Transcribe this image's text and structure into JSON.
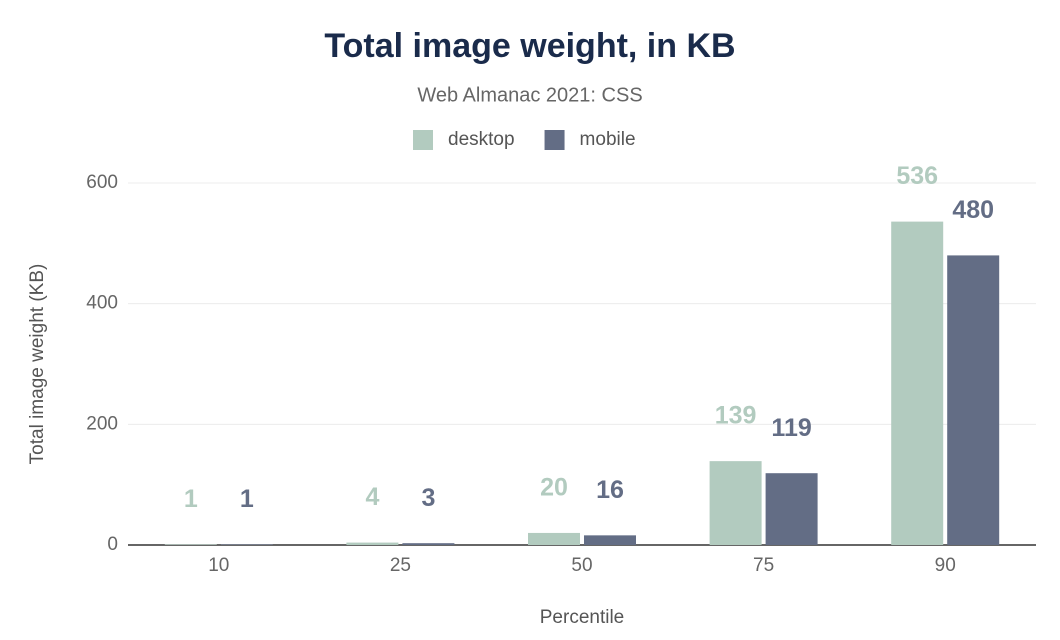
{
  "chart_data": {
    "type": "bar",
    "title": "Total image weight, in KB",
    "subtitle": "Web Almanac 2021: CSS",
    "x_label": "Percentile",
    "y_label": "Total image weight (KB)",
    "categories": [
      "10",
      "25",
      "50",
      "75",
      "90"
    ],
    "series": [
      {
        "name": "desktop",
        "color": "#b2cbbf",
        "values": [
          1,
          4,
          20,
          139,
          536
        ]
      },
      {
        "name": "mobile",
        "color": "#636d85",
        "values": [
          1,
          3,
          16,
          119,
          480
        ]
      }
    ],
    "ylim": [
      0,
      600
    ],
    "yticks": [
      0,
      200,
      400,
      600
    ],
    "grid": true,
    "legend": "top"
  }
}
